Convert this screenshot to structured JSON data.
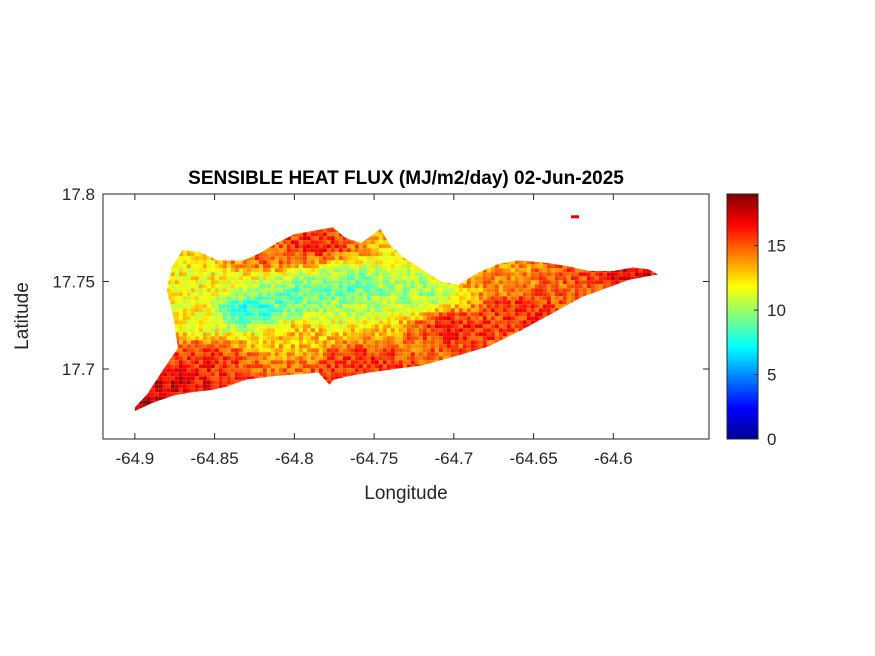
{
  "chart_data": {
    "type": "heatmap",
    "title": "SENSIBLE HEAT FLUX (MJ/m2/day) 02-Jun-2025",
    "xlabel": "Longitude",
    "ylabel": "Latitude",
    "xlim": [
      -64.92,
      -64.54
    ],
    "ylim": [
      17.66,
      17.8
    ],
    "xticks": [
      -64.9,
      -64.85,
      -64.8,
      -64.75,
      -64.7,
      -64.65,
      -64.6
    ],
    "xtick_labels": [
      "-64.9",
      "-64.85",
      "-64.8",
      "-64.75",
      "-64.7",
      "-64.65",
      "-64.6"
    ],
    "yticks": [
      17.7,
      17.75,
      17.8
    ],
    "ytick_labels": [
      "17.7",
      "17.75",
      "17.8"
    ],
    "colorbar": {
      "colormap": "jet",
      "clim": [
        0,
        19
      ],
      "ticks": [
        0,
        5,
        10,
        15
      ],
      "tick_labels": [
        "0",
        "5",
        "10",
        "15"
      ]
    },
    "island_outline": [
      [
        -64.9,
        17.678
      ],
      [
        -64.892,
        17.686
      ],
      [
        -64.882,
        17.7
      ],
      [
        -64.873,
        17.712
      ],
      [
        -64.876,
        17.73
      ],
      [
        -64.88,
        17.745
      ],
      [
        -64.877,
        17.758
      ],
      [
        -64.87,
        17.768
      ],
      [
        -64.86,
        17.767
      ],
      [
        -64.848,
        17.762
      ],
      [
        -64.832,
        17.762
      ],
      [
        -64.822,
        17.766
      ],
      [
        -64.811,
        17.772
      ],
      [
        -64.8,
        17.777
      ],
      [
        -64.788,
        17.779
      ],
      [
        -64.776,
        17.781
      ],
      [
        -64.768,
        17.775
      ],
      [
        -64.758,
        17.772
      ],
      [
        -64.752,
        17.776
      ],
      [
        -64.746,
        17.78
      ],
      [
        -64.74,
        17.771
      ],
      [
        -64.732,
        17.764
      ],
      [
        -64.72,
        17.757
      ],
      [
        -64.708,
        17.75
      ],
      [
        -64.697,
        17.748
      ],
      [
        -64.685,
        17.755
      ],
      [
        -64.672,
        17.76
      ],
      [
        -64.66,
        17.762
      ],
      [
        -64.645,
        17.761
      ],
      [
        -64.63,
        17.759
      ],
      [
        -64.615,
        17.756
      ],
      [
        -64.6,
        17.756
      ],
      [
        -64.588,
        17.758
      ],
      [
        -64.578,
        17.757
      ],
      [
        -64.572,
        17.754
      ],
      [
        -64.59,
        17.751
      ],
      [
        -64.605,
        17.746
      ],
      [
        -64.62,
        17.741
      ],
      [
        -64.64,
        17.731
      ],
      [
        -64.658,
        17.722
      ],
      [
        -64.678,
        17.713
      ],
      [
        -64.7,
        17.707
      ],
      [
        -64.72,
        17.702
      ],
      [
        -64.745,
        17.699
      ],
      [
        -64.76,
        17.697
      ],
      [
        -64.775,
        17.694
      ],
      [
        -64.778,
        17.691
      ],
      [
        -64.785,
        17.698
      ],
      [
        -64.798,
        17.697
      ],
      [
        -64.812,
        17.696
      ],
      [
        -64.83,
        17.694
      ],
      [
        -64.842,
        17.69
      ],
      [
        -64.852,
        17.688
      ],
      [
        -64.862,
        17.687
      ],
      [
        -64.875,
        17.685
      ],
      [
        -64.888,
        17.681
      ],
      [
        -64.9,
        17.676
      ]
    ],
    "field_description_points": [
      {
        "lon": -64.83,
        "lat": 17.735,
        "value": 8
      },
      {
        "lon": -64.8,
        "lat": 17.743,
        "value": 9
      },
      {
        "lon": -64.77,
        "lat": 17.747,
        "value": 9
      },
      {
        "lon": -64.75,
        "lat": 17.745,
        "value": 10
      },
      {
        "lon": -64.72,
        "lat": 17.745,
        "value": 10
      },
      {
        "lon": -64.86,
        "lat": 17.75,
        "value": 12
      },
      {
        "lon": -64.87,
        "lat": 17.735,
        "value": 12
      },
      {
        "lon": -64.8,
        "lat": 17.72,
        "value": 13
      },
      {
        "lon": -64.86,
        "lat": 17.705,
        "value": 16
      },
      {
        "lon": -64.88,
        "lat": 17.695,
        "value": 17
      },
      {
        "lon": -64.79,
        "lat": 17.773,
        "value": 16
      },
      {
        "lon": -64.82,
        "lat": 17.767,
        "value": 15
      },
      {
        "lon": -64.7,
        "lat": 17.725,
        "value": 16
      },
      {
        "lon": -64.66,
        "lat": 17.735,
        "value": 16
      },
      {
        "lon": -64.62,
        "lat": 17.745,
        "value": 15
      },
      {
        "lon": -64.59,
        "lat": 17.753,
        "value": 17
      },
      {
        "lon": -64.76,
        "lat": 17.705,
        "value": 16
      },
      {
        "lon": -64.68,
        "lat": 17.752,
        "value": 14
      },
      {
        "lon": -64.9,
        "lat": 17.68,
        "value": 18
      }
    ],
    "extra_blobs": [
      {
        "lon": -64.624,
        "lat": 17.787,
        "value": 17
      }
    ]
  }
}
